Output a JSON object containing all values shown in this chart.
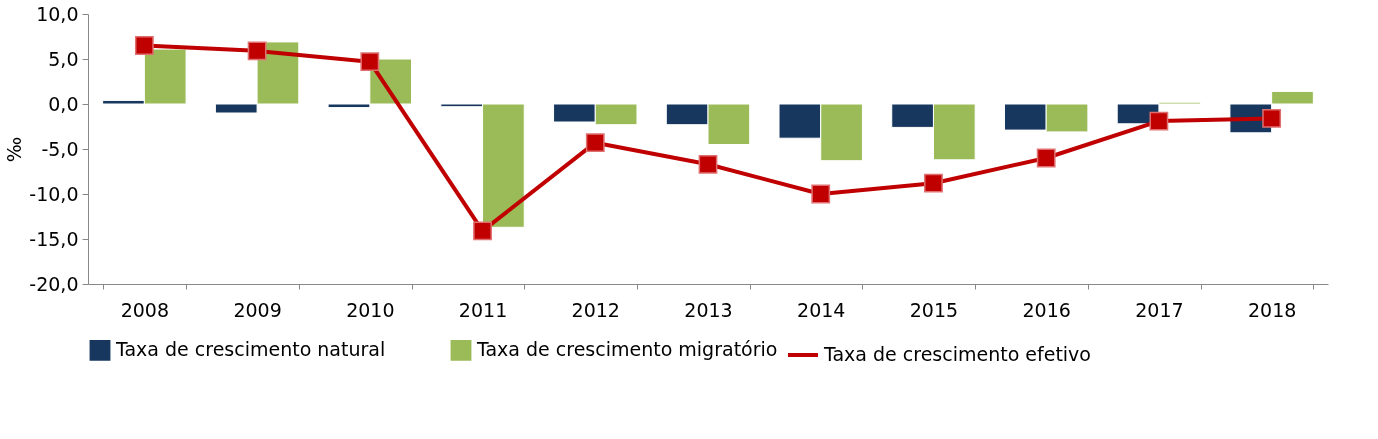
{
  "chart_data": {
    "type": "bar",
    "ylabel": "‰",
    "categories": [
      "2008",
      "2009",
      "2010",
      "2011",
      "2012",
      "2013",
      "2014",
      "2015",
      "2016",
      "2017",
      "2018"
    ],
    "series": [
      {
        "name": "Taxa de crescimento natural",
        "color": "#17375e",
        "values": [
          0.4,
          -1.0,
          -0.4,
          -0.3,
          -2.0,
          -2.3,
          -3.8,
          -2.6,
          -2.9,
          -2.2,
          -3.2
        ]
      },
      {
        "name": "Taxa de crescimento migratório",
        "color": "#9bbb59",
        "values": [
          6.1,
          6.9,
          5.0,
          -13.7,
          -2.3,
          -4.5,
          -6.3,
          -6.2,
          -3.1,
          0.2,
          1.4
        ]
      },
      {
        "name": "Taxa de crescimento efetivo",
        "color": "#c00000",
        "type": "line",
        "marker": "square",
        "values": [
          6.5,
          5.9,
          4.7,
          -14.1,
          -4.3,
          -6.7,
          -10.0,
          -8.8,
          -6.0,
          -1.9,
          -1.6
        ]
      }
    ],
    "ylim": [
      -20,
      10
    ],
    "yticks": [
      {
        "value": -20,
        "label": "-20,0"
      },
      {
        "value": -15,
        "label": "-15,0"
      },
      {
        "value": -10,
        "label": "-10,0"
      },
      {
        "value": -5,
        "label": "-5,0"
      },
      {
        "value": 0,
        "label": "0,0"
      },
      {
        "value": 5,
        "label": "5,0"
      },
      {
        "value": 10,
        "label": "10,0"
      }
    ],
    "legend": "bottom"
  }
}
